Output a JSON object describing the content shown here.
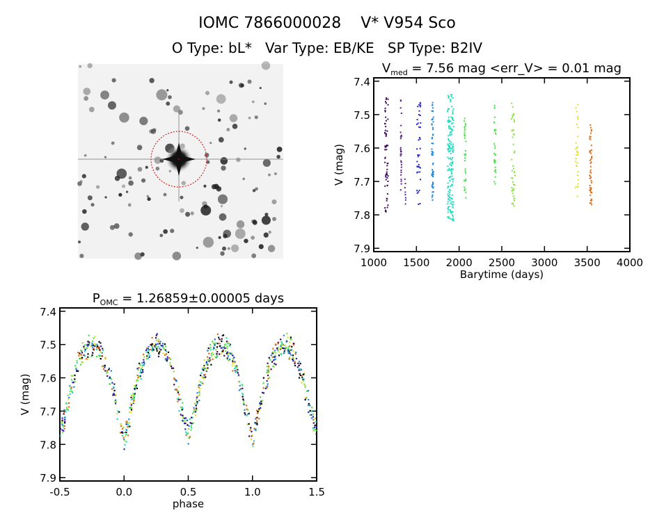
{
  "header": {
    "title_line1_id": "IOMC 7866000028",
    "title_line1_name": "V* V954 Sco",
    "title_line2": "O Type: bL*   Var Type: EB/KE   SP Type: B2IV"
  },
  "image_panel": {
    "description_label": "sky image cutout",
    "target_marker_color": "#cc0000"
  },
  "chart_data": [
    {
      "type": "scatter",
      "title_prefix": "V",
      "title_sub": "med",
      "title_rest": " = 7.56 mag <err_V> = 0.01 mag",
      "xlabel": "Barytime (days)",
      "ylabel": "V (mag)",
      "xlim": [
        1000,
        4000
      ],
      "ylim": [
        7.91,
        7.39
      ],
      "xticks": [
        "1000",
        "1500",
        "2000",
        "2500",
        "3000",
        "3500",
        "4000"
      ],
      "yticks": [
        "7.4",
        "7.5",
        "7.6",
        "7.7",
        "7.8",
        "7.9"
      ],
      "clusters": [
        {
          "x": [
            1130,
            1170
          ],
          "y": [
            7.45,
            7.8
          ],
          "n": 60,
          "color": "#3c0a55"
        },
        {
          "x": [
            1315,
            1325
          ],
          "y": [
            7.45,
            7.75
          ],
          "n": 30,
          "color": "#5a1a88"
        },
        {
          "x": [
            1365,
            1375
          ],
          "y": [
            7.69,
            7.77
          ],
          "n": 8,
          "color": "#4a2aa0"
        },
        {
          "x": [
            1505,
            1550
          ],
          "y": [
            7.46,
            7.78
          ],
          "n": 40,
          "color": "#2222c8"
        },
        {
          "x": [
            1680,
            1700
          ],
          "y": [
            7.46,
            7.76
          ],
          "n": 60,
          "color": "#2288dd"
        },
        {
          "x": [
            1865,
            1935
          ],
          "y": [
            7.44,
            7.82
          ],
          "n": 180,
          "color": "#22ddc0"
        },
        {
          "x": [
            2060,
            2080
          ],
          "y": [
            7.49,
            7.76
          ],
          "n": 30,
          "color": "#44e044"
        },
        {
          "x": [
            2410,
            2430
          ],
          "y": [
            7.47,
            7.71
          ],
          "n": 30,
          "color": "#44e044"
        },
        {
          "x": [
            2610,
            2655
          ],
          "y": [
            7.44,
            7.78
          ],
          "n": 45,
          "color": "#88e040"
        },
        {
          "x": [
            3365,
            3395
          ],
          "y": [
            7.47,
            7.75
          ],
          "n": 30,
          "color": "#dde022"
        },
        {
          "x": [
            3530,
            3555
          ],
          "y": [
            7.53,
            7.78
          ],
          "n": 50,
          "color": "#e06a10"
        }
      ]
    },
    {
      "type": "scatter",
      "title_prefix": "P",
      "title_sub": "OMC",
      "title_rest": " = 1.26859±0.00005 days",
      "xlabel": "phase",
      "ylabel": "V (mag)",
      "xlim": [
        -0.5,
        1.5
      ],
      "ylim": [
        7.91,
        7.39
      ],
      "xticks": [
        "-0.5",
        "0.0",
        "0.5",
        "1.0",
        "1.5"
      ],
      "yticks": [
        "7.4",
        "7.5",
        "7.6",
        "7.7",
        "7.8",
        "7.9"
      ],
      "mean_curve_phase": [
        0.0,
        0.05,
        0.1,
        0.15,
        0.2,
        0.25,
        0.3,
        0.35,
        0.4,
        0.45,
        0.5,
        0.55,
        0.6,
        0.65,
        0.7,
        0.75,
        0.8,
        0.85,
        0.9,
        0.95,
        1.0
      ],
      "mean_curve_mag": [
        7.79,
        7.7,
        7.61,
        7.55,
        7.51,
        7.5,
        7.51,
        7.55,
        7.61,
        7.7,
        7.77,
        7.7,
        7.61,
        7.55,
        7.51,
        7.5,
        7.51,
        7.55,
        7.61,
        7.7,
        7.79
      ],
      "scatter_mag": 0.025,
      "colors": [
        "#000000",
        "#3c0a55",
        "#2222c8",
        "#2288dd",
        "#22ddc0",
        "#44e044",
        "#88e040",
        "#dde022",
        "#e06a10"
      ]
    }
  ]
}
